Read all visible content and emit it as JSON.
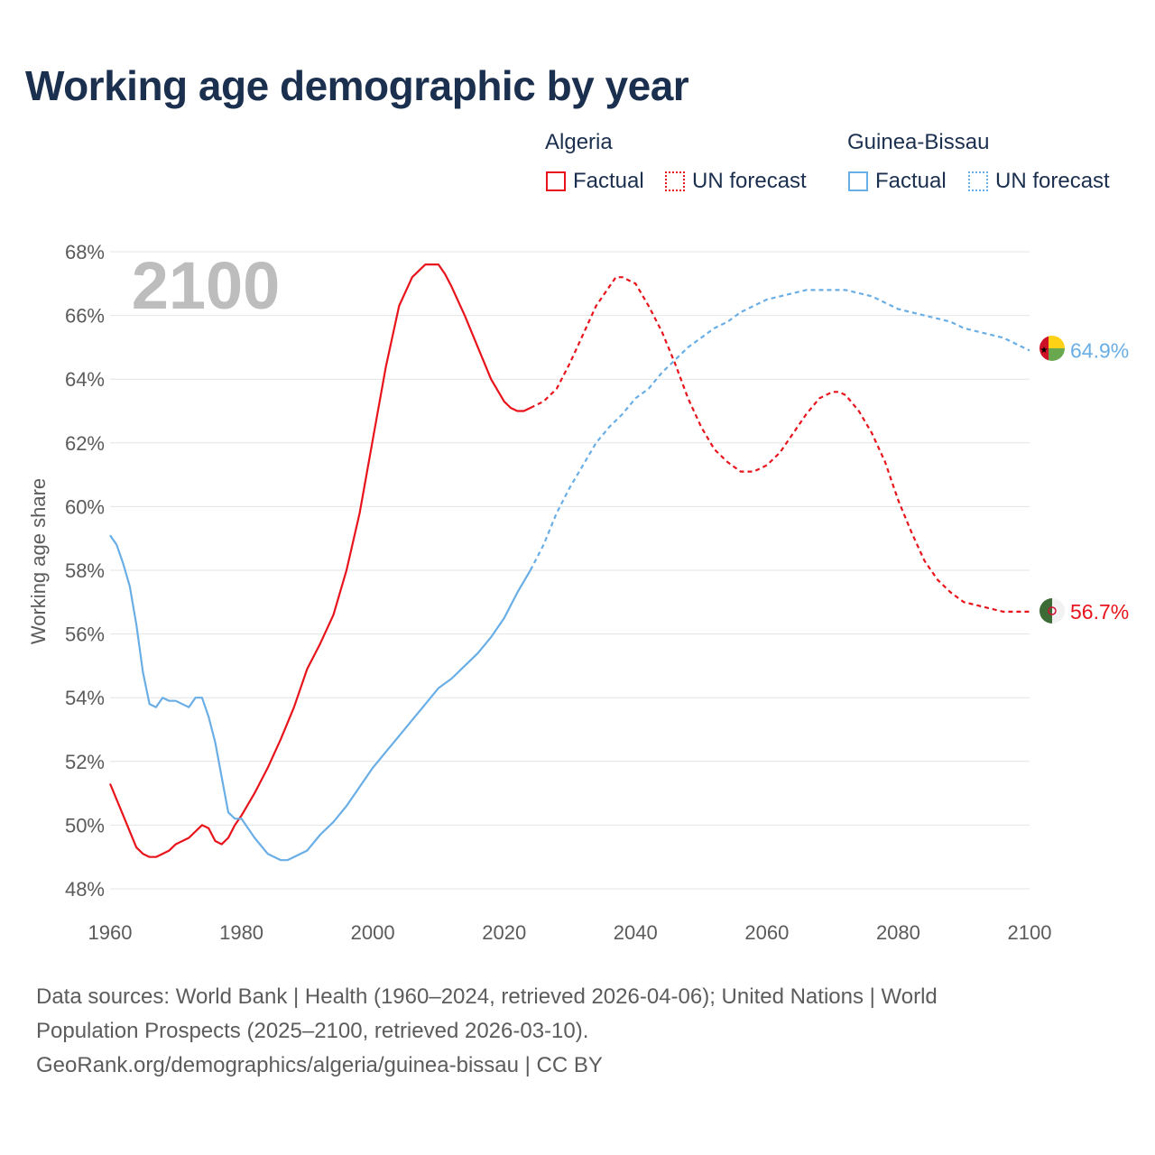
{
  "title": "Working age demographic by year",
  "legend": {
    "groups": [
      {
        "country": "Algeria",
        "factual_label": "Factual",
        "forecast_label": "UN forecast"
      },
      {
        "country": "Guinea-Bissau",
        "factual_label": "Factual",
        "forecast_label": "UN forecast"
      }
    ]
  },
  "year_display": "2100",
  "chart_data": {
    "type": "line",
    "title": "Working age demographic by year",
    "xlabel": "",
    "ylabel": "Working age share",
    "xlim": [
      1960,
      2100
    ],
    "ylim": [
      48,
      68
    ],
    "x_ticks": [
      1960,
      1980,
      2000,
      2020,
      2040,
      2060,
      2080,
      2100
    ],
    "x_tick_labels": [
      "1960",
      "1980",
      "2000",
      "2020",
      "2040",
      "2060",
      "2080",
      "2100"
    ],
    "y_ticks": [
      48,
      50,
      52,
      54,
      56,
      58,
      60,
      62,
      64,
      66,
      68
    ],
    "y_tick_labels": [
      "48%",
      "50%",
      "52%",
      "54%",
      "56%",
      "58%",
      "60%",
      "62%",
      "64%",
      "66%",
      "68%"
    ],
    "grid": true,
    "series": [
      {
        "name": "Algeria",
        "color": "#e8141c",
        "factual": {
          "x": [
            1960,
            1962,
            1964,
            1965,
            1966,
            1967,
            1968,
            1969,
            1970,
            1972,
            1974,
            1975,
            1976,
            1977,
            1978,
            1979,
            1980,
            1982,
            1984,
            1986,
            1988,
            1990,
            1992,
            1994,
            1996,
            1998,
            2000,
            2002,
            2004,
            2006,
            2008,
            2009,
            2010,
            2011,
            2012,
            2014,
            2016,
            2018,
            2020,
            2021,
            2022,
            2023,
            2024
          ],
          "values": [
            51.3,
            50.3,
            49.3,
            49.1,
            49.0,
            49.0,
            49.1,
            49.2,
            49.4,
            49.6,
            50.0,
            49.9,
            49.5,
            49.4,
            49.6,
            50.0,
            50.3,
            51.0,
            51.8,
            52.7,
            53.7,
            54.9,
            55.7,
            56.6,
            58.0,
            59.8,
            62.1,
            64.4,
            66.3,
            67.2,
            67.6,
            67.6,
            67.6,
            67.3,
            66.9,
            66.0,
            65.0,
            64.0,
            63.3,
            63.1,
            63.0,
            63.0,
            63.1
          ]
        },
        "forecast": {
          "x": [
            2024,
            2026,
            2028,
            2030,
            2032,
            2034,
            2036,
            2037,
            2038,
            2040,
            2042,
            2044,
            2046,
            2048,
            2050,
            2052,
            2054,
            2056,
            2058,
            2060,
            2062,
            2064,
            2066,
            2068,
            2070,
            2071,
            2072,
            2074,
            2076,
            2078,
            2080,
            2082,
            2084,
            2086,
            2088,
            2090,
            2092,
            2094,
            2096,
            2098,
            2100
          ],
          "values": [
            63.1,
            63.3,
            63.7,
            64.5,
            65.4,
            66.3,
            66.9,
            67.2,
            67.2,
            67.0,
            66.3,
            65.5,
            64.5,
            63.4,
            62.5,
            61.8,
            61.4,
            61.1,
            61.1,
            61.3,
            61.7,
            62.3,
            62.9,
            63.4,
            63.6,
            63.6,
            63.5,
            63.0,
            62.3,
            61.4,
            60.2,
            59.2,
            58.3,
            57.7,
            57.3,
            57.0,
            56.9,
            56.8,
            56.7,
            56.7,
            56.7
          ]
        },
        "end_label": "56.7%"
      },
      {
        "name": "Guinea-Bissau",
        "color": "#6aaee6",
        "factual": {
          "x": [
            1960,
            1961,
            1962,
            1963,
            1964,
            1965,
            1966,
            1967,
            1968,
            1969,
            1970,
            1971,
            1972,
            1973,
            1974,
            1975,
            1976,
            1977,
            1978,
            1979,
            1980,
            1982,
            1984,
            1986,
            1987,
            1988,
            1990,
            1992,
            1994,
            1996,
            1998,
            2000,
            2002,
            2004,
            2006,
            2008,
            2010,
            2012,
            2014,
            2016,
            2018,
            2020,
            2022,
            2024
          ],
          "values": [
            59.1,
            58.8,
            58.2,
            57.5,
            56.3,
            54.8,
            53.8,
            53.7,
            54.0,
            53.9,
            53.9,
            53.8,
            53.7,
            54.0,
            54.0,
            53.4,
            52.6,
            51.5,
            50.4,
            50.2,
            50.2,
            49.6,
            49.1,
            48.9,
            48.9,
            49.0,
            49.2,
            49.7,
            50.1,
            50.6,
            51.2,
            51.8,
            52.3,
            52.8,
            53.3,
            53.8,
            54.3,
            54.6,
            55.0,
            55.4,
            55.9,
            56.5,
            57.3,
            58.0
          ]
        },
        "forecast": {
          "x": [
            2024,
            2026,
            2028,
            2030,
            2032,
            2034,
            2036,
            2038,
            2040,
            2042,
            2044,
            2046,
            2048,
            2050,
            2052,
            2054,
            2056,
            2058,
            2060,
            2062,
            2064,
            2066,
            2068,
            2070,
            2072,
            2074,
            2076,
            2078,
            2080,
            2082,
            2084,
            2086,
            2088,
            2090,
            2092,
            2094,
            2096,
            2098,
            2100
          ],
          "values": [
            58.0,
            58.8,
            59.8,
            60.6,
            61.3,
            62.0,
            62.5,
            62.9,
            63.4,
            63.7,
            64.2,
            64.6,
            65.0,
            65.3,
            65.6,
            65.8,
            66.1,
            66.3,
            66.5,
            66.6,
            66.7,
            66.8,
            66.8,
            66.8,
            66.8,
            66.7,
            66.6,
            66.4,
            66.2,
            66.1,
            66.0,
            65.9,
            65.8,
            65.6,
            65.5,
            65.4,
            65.3,
            65.1,
            64.9
          ]
        },
        "end_label": "64.9%"
      }
    ]
  },
  "footer": {
    "line1": "Data sources: World Bank | Health (1960–2024, retrieved 2026-04-06); United Nations | World",
    "line2": "Population Prospects (2025–2100, retrieved 2026-03-10).",
    "line3": "GeoRank.org/demographics/algeria/guinea-bissau | CC BY"
  },
  "colors": {
    "algeria": "#e8141c",
    "guinea_bissau": "#6aaee6",
    "title": "#1b2f4e",
    "grid": "#e4e4e4",
    "year_watermark": "#bdbdbd"
  }
}
